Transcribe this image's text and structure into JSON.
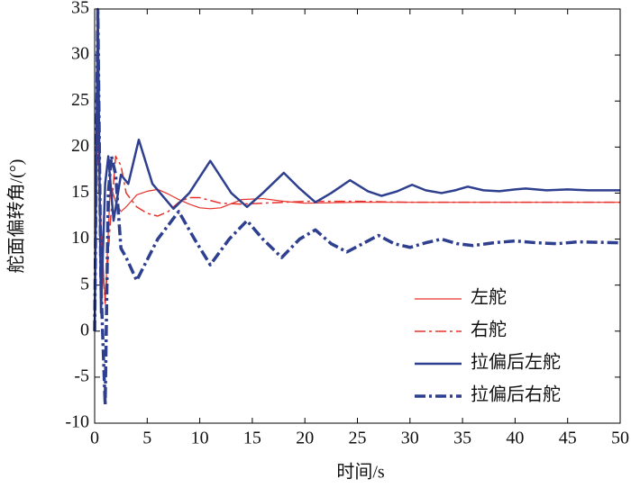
{
  "chart_data": {
    "type": "line",
    "xlabel": "时间/s",
    "ylabel": "舵面偏转角/(°)",
    "xlim": [
      0,
      50
    ],
    "ylim": [
      -10,
      35
    ],
    "xticks": [
      0,
      5,
      10,
      15,
      20,
      25,
      30,
      35,
      40,
      45,
      50
    ],
    "yticks": [
      -10,
      -5,
      0,
      5,
      10,
      15,
      20,
      25,
      30,
      35
    ],
    "grid": false,
    "legend": "lower right",
    "series": [
      {
        "name": "左舵",
        "color": "#e8302a",
        "linestyle": "solid",
        "linewidth": 1.2,
        "x": [
          0,
          0.3,
          0.6,
          1,
          1.5,
          2,
          2.5,
          3,
          4,
          5,
          6,
          7,
          8,
          9,
          10,
          11,
          12,
          14,
          16,
          18,
          20,
          25,
          30,
          40,
          50
        ],
        "values": [
          0,
          25,
          12,
          3,
          16,
          14,
          13,
          13.5,
          14.8,
          15.2,
          15.4,
          14.9,
          14.3,
          13.8,
          13.4,
          13.3,
          13.4,
          14.3,
          14.4,
          14.1,
          13.9,
          14.0,
          14.0,
          14.0,
          14.0
        ]
      },
      {
        "name": "右舵",
        "color": "#e8302a",
        "linestyle": "dashdot",
        "linewidth": 1.5,
        "x": [
          0,
          0.3,
          0.6,
          1,
          1.5,
          2,
          2.5,
          3,
          4,
          5,
          6,
          7,
          8,
          9,
          10,
          11,
          12,
          14,
          16,
          18,
          20,
          25,
          30,
          40,
          50
        ],
        "values": [
          0,
          22,
          10,
          3,
          12,
          19,
          18,
          15,
          13.5,
          12.8,
          12.5,
          13,
          14,
          14.5,
          14.5,
          14.2,
          13.9,
          13.8,
          13.9,
          14.0,
          14.1,
          14.1,
          14.0,
          14.0,
          14.0
        ]
      },
      {
        "name": "拉偏后左舵",
        "color": "#2e3f8f",
        "linestyle": "solid",
        "linewidth": 2.5,
        "x": [
          0,
          0.3,
          0.6,
          1,
          1.3,
          1.8,
          2.5,
          3.2,
          4.2,
          5.5,
          7.5,
          9,
          11,
          13,
          14.5,
          16,
          18,
          19.5,
          21,
          22.5,
          24.3,
          26,
          27.3,
          28.8,
          30.2,
          31.5,
          33,
          34.3,
          35.5,
          37,
          38.5,
          40,
          41,
          43,
          45,
          47,
          50
        ],
        "values": [
          0,
          35,
          2,
          16,
          19,
          12,
          17,
          16,
          20.8,
          16,
          13.3,
          15,
          18.5,
          15,
          13.5,
          15,
          17.2,
          15.5,
          14,
          15,
          16.4,
          15.2,
          14.7,
          15.2,
          15.9,
          15.3,
          15,
          15.3,
          15.7,
          15.3,
          15.2,
          15.4,
          15.5,
          15.3,
          15.4,
          15.3,
          15.3
        ]
      },
      {
        "name": "拉偏后右舵",
        "color": "#2e3f8f",
        "linestyle": "dashdot",
        "linewidth": 3.5,
        "x": [
          0,
          0.3,
          0.6,
          1,
          1.3,
          1.6,
          2,
          2.5,
          3,
          4,
          6,
          8,
          9.5,
          11,
          12.8,
          14.5,
          16,
          17.8,
          19.5,
          21,
          22.5,
          24,
          25.5,
          27,
          28.5,
          30,
          31.5,
          33,
          34.5,
          36,
          38,
          40,
          42,
          44,
          46,
          50
        ],
        "values": [
          0,
          35,
          5,
          -8,
          15,
          19,
          17,
          9,
          8,
          5.5,
          10,
          13,
          10,
          7.2,
          10,
          12,
          10,
          8,
          10,
          11,
          9.5,
          8.6,
          9.5,
          10.4,
          9.5,
          9.1,
          9.6,
          10,
          9.5,
          9.3,
          9.6,
          9.8,
          9.6,
          9.5,
          9.7,
          9.6
        ]
      }
    ]
  }
}
